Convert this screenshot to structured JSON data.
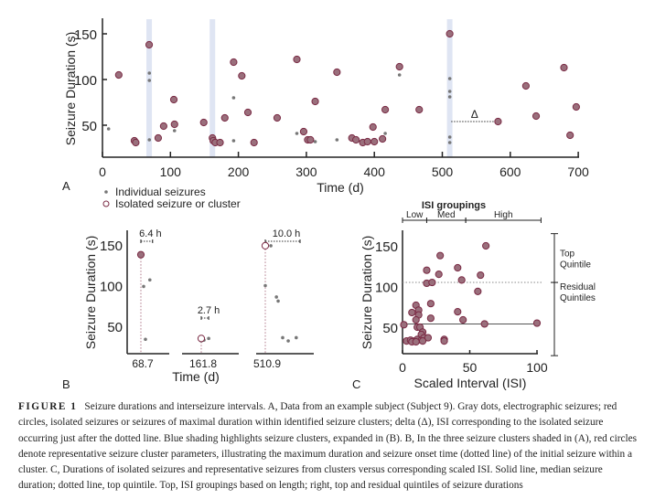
{
  "colors": {
    "isolated_fill": "#9a6f7c",
    "isolated_stroke": "#7a2a44",
    "individual": "#777777",
    "cluster_shading": "#dfe5f3"
  },
  "legend": {
    "individual": "Individual seizures",
    "isolated": "Isolated seizure or cluster"
  },
  "chart_data": [
    {
      "panel": "A",
      "type": "scatter",
      "xlabel": "Time (d)",
      "ylabel": "Seizure Duration (s)",
      "xlim": [
        0,
        710
      ],
      "ylim": [
        15,
        165
      ],
      "xticks": [
        "0",
        "100",
        "200",
        "300",
        "400",
        "500",
        "600",
        "700"
      ],
      "yticks": [
        "50",
        "100",
        "150"
      ],
      "cluster_shading_x": [
        68.7,
        161.8,
        510.9
      ],
      "delta": {
        "label": "Δ",
        "from": 513,
        "to": 582,
        "y": 54
      },
      "series": [
        {
          "name": "Isolated seizure or cluster",
          "points": [
            [
              24,
              105
            ],
            [
              47,
              33
            ],
            [
              49,
              31
            ],
            [
              68.7,
              138
            ],
            [
              82,
              36
            ],
            [
              90,
              49
            ],
            [
              105,
              78
            ],
            [
              106,
              51
            ],
            [
              149,
              53
            ],
            [
              161.8,
              36
            ],
            [
              163,
              33
            ],
            [
              166,
              31
            ],
            [
              173,
              31
            ],
            [
              180,
              58
            ],
            [
              193,
              119
            ],
            [
              205,
              104
            ],
            [
              214,
              64
            ],
            [
              223,
              31
            ],
            [
              257,
              58
            ],
            [
              286,
              122
            ],
            [
              296,
              43
            ],
            [
              302,
              34
            ],
            [
              306,
              34
            ],
            [
              313,
              76
            ],
            [
              345,
              108
            ],
            [
              367,
              36
            ],
            [
              373,
              34
            ],
            [
              383,
              31
            ],
            [
              390,
              32
            ],
            [
              400,
              32
            ],
            [
              398,
              48
            ],
            [
              412,
              35
            ],
            [
              416,
              67
            ],
            [
              437,
              114
            ],
            [
              466,
              67
            ],
            [
              510.9,
              150
            ],
            [
              582,
              54
            ],
            [
              623,
              93
            ],
            [
              638,
              60
            ],
            [
              679,
              113
            ],
            [
              688,
              39
            ],
            [
              697,
              70
            ]
          ]
        },
        {
          "name": "Individual seizures",
          "points": [
            [
              9,
              46
            ],
            [
              69,
              107
            ],
            [
              69,
              99
            ],
            [
              69,
              34
            ],
            [
              106,
              44
            ],
            [
              193,
              80
            ],
            [
              193,
              33
            ],
            [
              286,
              41
            ],
            [
              313,
              32
            ],
            [
              345,
              34
            ],
            [
              416,
              41
            ],
            [
              437,
              105
            ],
            [
              511,
              101
            ],
            [
              511,
              87
            ],
            [
              511,
              81
            ],
            [
              511,
              37
            ],
            [
              511,
              31
            ]
          ]
        }
      ]
    },
    {
      "panel": "B",
      "type": "scatter",
      "xlabel": "Time (d)",
      "ylabel": "Seizure Duration (s)",
      "ylim": [
        15,
        165
      ],
      "yticks": [
        "50",
        "100",
        "150"
      ],
      "clusters": [
        {
          "onset_label": "68.7",
          "span_label": "6.4 h",
          "span_h": 6.4,
          "rep": [
            0,
            138
          ],
          "rep_filled": true,
          "points": [
            [
              1.5,
              99
            ],
            [
              4.9,
              107
            ],
            [
              2.5,
              34
            ]
          ]
        },
        {
          "onset_label": "161.8",
          "span_label": "2.7 h",
          "span_h": 2.7,
          "rep": [
            0,
            35
          ],
          "rep_filled": false,
          "points": [
            [
              0,
              32
            ],
            [
              1,
              33
            ],
            [
              2.7,
              35
            ]
          ]
        },
        {
          "onset_label": "510.9",
          "span_label": "10.0 h",
          "span_h": 10.0,
          "rep": [
            0,
            149
          ],
          "rep_filled": false,
          "points": [
            [
              1.6,
              149
            ],
            [
              0,
              100
            ],
            [
              3.2,
              86
            ],
            [
              3.7,
              81
            ],
            [
              5.0,
              36
            ],
            [
              6.6,
              32
            ],
            [
              8.9,
              36
            ]
          ]
        }
      ]
    },
    {
      "panel": "C",
      "type": "scatter",
      "title": "ISI groupings",
      "xlabel": "Scaled Interval (ISI)",
      "ylabel": "Seizure Duration (s)",
      "xlim": [
        0,
        100
      ],
      "ylim": [
        15,
        165
      ],
      "xticks": [
        "0",
        "50",
        "100"
      ],
      "yticks": [
        "50",
        "100",
        "150"
      ],
      "median": 54,
      "top_quintile": 105,
      "groups": [
        {
          "label": "Low",
          "range": [
            0,
            18
          ]
        },
        {
          "label": "Med",
          "range": [
            18,
            47
          ]
        },
        {
          "label": "High",
          "range": [
            47,
            103
          ]
        }
      ],
      "quintiles": [
        {
          "label": "Top",
          "label2": "Quintile",
          "range": [
            105,
            165
          ]
        },
        {
          "label": "Residual",
          "label2": "Quintiles",
          "range": [
            15,
            105
          ]
        }
      ],
      "points": [
        [
          62,
          150
        ],
        [
          28,
          138
        ],
        [
          41,
          123
        ],
        [
          18,
          120
        ],
        [
          27,
          115
        ],
        [
          58,
          114
        ],
        [
          44,
          108
        ],
        [
          18,
          104
        ],
        [
          22,
          105
        ],
        [
          56,
          94
        ],
        [
          21,
          79
        ],
        [
          10,
          77
        ],
        [
          7,
          68
        ],
        [
          12,
          71
        ],
        [
          12,
          65
        ],
        [
          41,
          69
        ],
        [
          10,
          59
        ],
        [
          21,
          61
        ],
        [
          45,
          59
        ],
        [
          1,
          53
        ],
        [
          61,
          54
        ],
        [
          100,
          55
        ],
        [
          11,
          50
        ],
        [
          13,
          50
        ],
        [
          15,
          44
        ],
        [
          14,
          41
        ],
        [
          3,
          33
        ],
        [
          6,
          34
        ],
        [
          9,
          33
        ],
        [
          11,
          35
        ],
        [
          14,
          34
        ],
        [
          16,
          37
        ],
        [
          19,
          37
        ],
        [
          7,
          32
        ],
        [
          10,
          32
        ],
        [
          15,
          33
        ],
        [
          31,
          35
        ],
        [
          31,
          33
        ]
      ]
    }
  ],
  "panel_labels": [
    "A",
    "B",
    "C"
  ],
  "caption": {
    "label": "FIGURE 1",
    "text": "Seizure durations and interseizure intervals. A, Data from an example subject (Subject 9). Gray dots, electrographic seizures; red circles, isolated seizures or seizures of maximal duration within identified seizure clusters; delta (Δ), ISI corresponding to the isolated seizure occurring just after the dotted line. Blue shading highlights seizure clusters, expanded in (B). B, In the three seizure clusters shaded in (A), red circles denote representative seizure cluster parameters, illustrating the maximum duration and seizure onset time (dotted line) of the initial seizure within a cluster. C, Durations of isolated seizures and representative seizures from clusters versus corresponding scaled ISI. Solid line, median seizure duration; dotted line, top quintile. Top, ISI groupings based on length; right, top and residual quintiles of seizure durations"
  }
}
